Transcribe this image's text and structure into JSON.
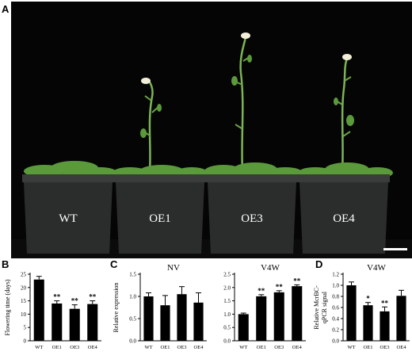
{
  "panels": {
    "a": {
      "letter": "A",
      "pot_labels": [
        "WT",
        "OE1",
        "OE3",
        "OE4"
      ]
    },
    "b": {
      "letter": "B"
    },
    "c": {
      "letter": "C"
    },
    "d": {
      "letter": "D"
    }
  },
  "colors": {
    "background_photo": "#000000",
    "pot": "#2b2d2c",
    "leaf": "#5b9a3a",
    "stem": "#7db356",
    "flower": "#f2efd9",
    "scale_bar": "#ffffff",
    "bar_fill": "#000000"
  },
  "chart_data": [
    {
      "id": "B",
      "type": "bar",
      "title": "",
      "ylabel": "Flowering time (days)",
      "categories": [
        "WT",
        "OE1",
        "OE3",
        "OE4"
      ],
      "values": [
        23,
        14,
        12,
        13.8
      ],
      "errors": [
        1.2,
        1.0,
        1.5,
        1.2
      ],
      "significance": [
        "",
        "**",
        "**",
        "**"
      ],
      "ylim": [
        0,
        25
      ],
      "yticks": [
        "0",
        "5",
        "10",
        "15",
        "20",
        "25"
      ],
      "grid": false
    },
    {
      "id": "C-NV",
      "type": "bar",
      "title": "NV",
      "ylabel": "Relative expression",
      "categories": [
        "WT",
        "OE1",
        "OE3",
        "OE4"
      ],
      "values": [
        1.0,
        0.8,
        1.05,
        0.86
      ],
      "errors": [
        0.08,
        0.22,
        0.17,
        0.22
      ],
      "significance": [
        "",
        "",
        "",
        ""
      ],
      "ylim": [
        0,
        1.5
      ],
      "yticks": [
        "0.0",
        "0.5",
        "1.0",
        "1.5"
      ],
      "grid": false
    },
    {
      "id": "C-V4W",
      "type": "bar",
      "title": "V4W",
      "ylabel": "",
      "categories": [
        "WT",
        "OE1",
        "OE3",
        "OE4"
      ],
      "values": [
        1.0,
        1.67,
        1.82,
        2.05
      ],
      "errors": [
        0.04,
        0.06,
        0.06,
        0.05
      ],
      "significance": [
        "",
        "**",
        "**",
        "**"
      ],
      "ylim": [
        0,
        2.5
      ],
      "yticks": [
        "0.0",
        "0.5",
        "1.0",
        "1.5",
        "2.0",
        "2.5"
      ],
      "grid": false
    },
    {
      "id": "D",
      "type": "bar",
      "title": "V4W",
      "ylabel": "Relative McrBC-qPCR signal",
      "ylabel_lines": [
        "Relative McrBC-",
        "qPCR signal"
      ],
      "categories": [
        "WT",
        "OE1",
        "OE3",
        "OE4"
      ],
      "values": [
        1.0,
        0.64,
        0.53,
        0.81
      ],
      "errors": [
        0.06,
        0.05,
        0.08,
        0.1
      ],
      "significance": [
        "",
        "*",
        "**",
        ""
      ],
      "ylim": [
        0,
        1.2
      ],
      "yticks": [
        "0.0",
        "0.2",
        "0.4",
        "0.6",
        "0.8",
        "1.0",
        "1.2"
      ],
      "grid": false
    }
  ]
}
